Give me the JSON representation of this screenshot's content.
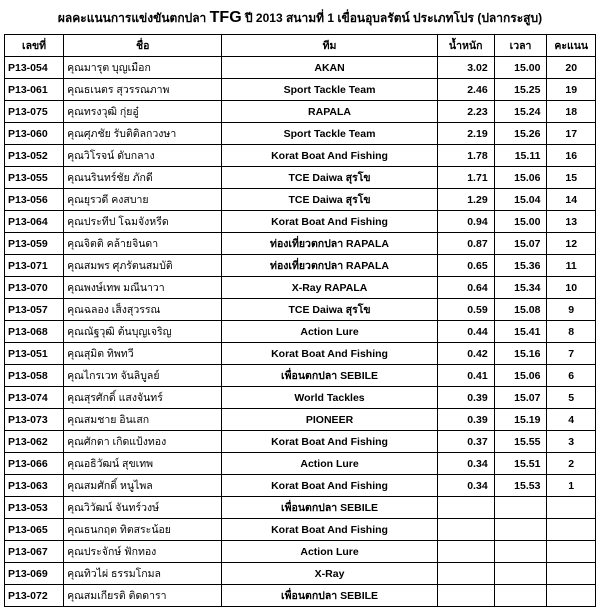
{
  "title": {
    "prefix": "ผลคะแนนการแข่งขันตกปลา ",
    "brand": "TFG",
    "suffix": " ปี 2013 สนามที่ 1 เขื่อนอุบลรัตน์  ประเภทโปร (ปลากระสูบ)"
  },
  "headers": {
    "id": "เลขที่",
    "name": "ชื่อ",
    "team": "ทีม",
    "weight": "น้ำหนัก",
    "time": "เวลา",
    "score": "คะแนน"
  },
  "rows": [
    {
      "id": "P13-054",
      "name": "คุณมารุต บุญเมือก",
      "team": "AKAN",
      "w": "3.02",
      "t": "15.00",
      "s": "20"
    },
    {
      "id": "P13-061",
      "name": "คุณธเนตร สุวรรณภาพ",
      "team": "Sport Tackle Team",
      "w": "2.46",
      "t": "15.25",
      "s": "19"
    },
    {
      "id": "P13-075",
      "name": "คุณทรงวุฒิ กุ่ยอู๋",
      "team": "RAPALA",
      "w": "2.23",
      "t": "15.24",
      "s": "18"
    },
    {
      "id": "P13-060",
      "name": "คุณศุภชัย รับติติลกวงษา",
      "team": "Sport Tackle Team",
      "w": "2.19",
      "t": "15.26",
      "s": "17"
    },
    {
      "id": "P13-052",
      "name": "คุณวิโรจน์ ดับกลาง",
      "team": "Korat Boat And Fishing",
      "w": "1.78",
      "t": "15.11",
      "s": "16"
    },
    {
      "id": "P13-055",
      "name": "คุณนรินทร์ชัย ภักดี",
      "team": "TCE Daiwa สุรโข",
      "w": "1.71",
      "t": "15.06",
      "s": "15"
    },
    {
      "id": "P13-056",
      "name": "คุณยุรวดี คงสบาย",
      "team": "TCE Daiwa สุรโข",
      "w": "1.29",
      "t": "15.04",
      "s": "14"
    },
    {
      "id": "P13-064",
      "name": "คุณประทีป โฉมจังหรีด",
      "team": "Korat Boat And Fishing",
      "w": "0.94",
      "t": "15.00",
      "s": "13"
    },
    {
      "id": "P13-059",
      "name": "คุณจิตติ คล้ายจินดา",
      "team": "ท่องเที่ยวตกปลา RAPALA",
      "w": "0.87",
      "t": "15.07",
      "s": "12"
    },
    {
      "id": "P13-071",
      "name": "คุณสมพร ศุภรัตนสมบัติ",
      "team": "ท่องเที่ยวตกปลา RAPALA",
      "w": "0.65",
      "t": "15.36",
      "s": "11"
    },
    {
      "id": "P13-070",
      "name": "คุณพงษ์เทพ มณีนาวา",
      "team": "X-Ray RAPALA",
      "w": "0.64",
      "t": "15.34",
      "s": "10"
    },
    {
      "id": "P13-057",
      "name": "คุณฉลอง เส็งสุวรรณ",
      "team": "TCE Daiwa สุรโข",
      "w": "0.59",
      "t": "15.08",
      "s": "9"
    },
    {
      "id": "P13-068",
      "name": "คุณณัฐวุฒิ ต้นบุญเจริญ",
      "team": "Action Lure",
      "w": "0.44",
      "t": "15.41",
      "s": "8"
    },
    {
      "id": "P13-051",
      "name": "คุณสุมิต ทิพทวี",
      "team": "Korat Boat And Fishing",
      "w": "0.42",
      "t": "15.16",
      "s": "7"
    },
    {
      "id": "P13-058",
      "name": "คุณไกรเวท จันลิบูลย์",
      "team": "เพื่อนตกปลา SEBILE",
      "w": "0.41",
      "t": "15.06",
      "s": "6"
    },
    {
      "id": "P13-074",
      "name": "คุณสุรศักดิ์ แสงจันทร์",
      "team": "World Tackles",
      "w": "0.39",
      "t": "15.07",
      "s": "5"
    },
    {
      "id": "P13-073",
      "name": "คุณสมชาย อินเสก",
      "team": "PIONEER",
      "w": "0.39",
      "t": "15.19",
      "s": "4"
    },
    {
      "id": "P13-062",
      "name": "คุณศักดา เกิดแป้งทอง",
      "team": "Korat Boat And Fishing",
      "w": "0.37",
      "t": "15.55",
      "s": "3"
    },
    {
      "id": "P13-066",
      "name": "คุณอธิวัฒน์ สุขเทพ",
      "team": "Action Lure",
      "w": "0.34",
      "t": "15.51",
      "s": "2"
    },
    {
      "id": "P13-063",
      "name": "คุณสมศักดิ์ หนูไพล",
      "team": "Korat Boat And Fishing",
      "w": "0.34",
      "t": "15.53",
      "s": "1"
    },
    {
      "id": "P13-053",
      "name": "คุณวิวัฒน์ จันทร์วงษ์",
      "team": "เพื่อนตกปลา SEBILE",
      "w": "",
      "t": "",
      "s": ""
    },
    {
      "id": "P13-065",
      "name": "คุณธนกฤต ทิตสระน้อย",
      "team": "Korat Boat And Fishing",
      "w": "",
      "t": "",
      "s": ""
    },
    {
      "id": "P13-067",
      "name": "คุณประจักษ์ ฟักทอง",
      "team": "Action Lure",
      "w": "",
      "t": "",
      "s": ""
    },
    {
      "id": "P13-069",
      "name": "คุณทิวไผ่ ธรรมโกมล",
      "team": "X-Ray",
      "w": "",
      "t": "",
      "s": ""
    },
    {
      "id": "P13-072",
      "name": "คุณสมเกียรติ ติดดารา",
      "team": "เพื่อนตกปลา SEBILE",
      "w": "",
      "t": "",
      "s": ""
    }
  ]
}
